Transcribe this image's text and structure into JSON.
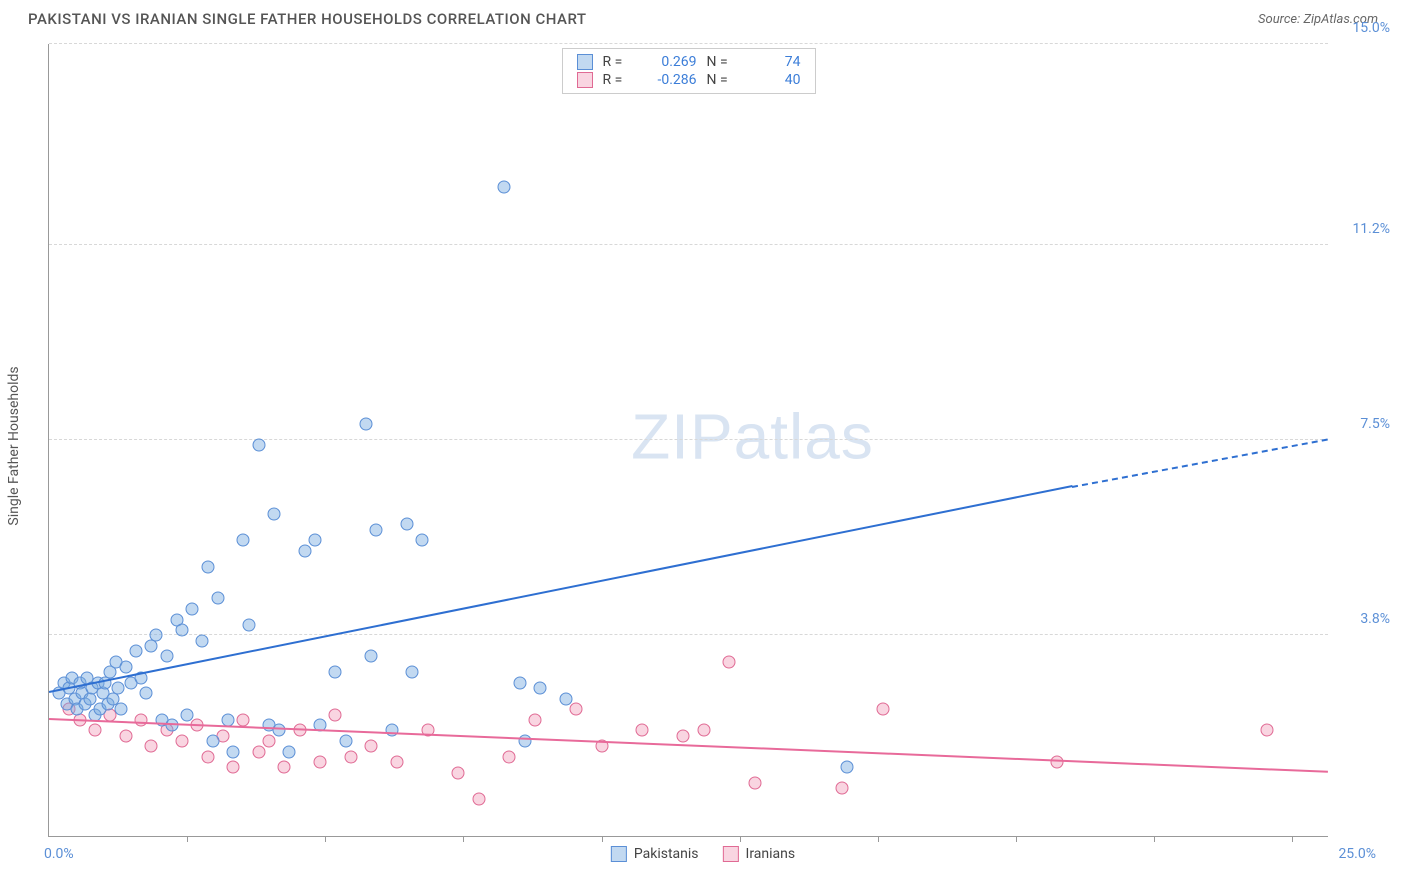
{
  "title": "PAKISTANI VS IRANIAN SINGLE FATHER HOUSEHOLDS CORRELATION CHART",
  "source_label": "Source:",
  "source_name": "ZipAtlas.com",
  "y_axis_label": "Single Father Households",
  "watermark_a": "ZIP",
  "watermark_b": "atlas",
  "chart": {
    "type": "scatter",
    "xlim": [
      0,
      25.0
    ],
    "ylim": [
      0,
      15.0
    ],
    "x_origin_label": "0.0%",
    "x_max_label": "25.0%",
    "y_ticks": [
      3.8,
      7.5,
      11.2,
      15.0
    ],
    "y_tick_labels": [
      "3.8%",
      "7.5%",
      "11.2%",
      "15.0%"
    ],
    "x_tick_positions": [
      2.7,
      5.4,
      8.1,
      10.8,
      13.5,
      16.2,
      18.9,
      21.6,
      24.3
    ],
    "background_color": "#ffffff",
    "grid_color": "#d8d8d8",
    "series": {
      "pakistanis": {
        "label": "Pakistanis",
        "point_fill": "rgba(120,170,225,0.45)",
        "point_stroke": "#5b8fd6",
        "line_color": "#2e6fd1",
        "R": "0.269",
        "N": "74",
        "trend": {
          "x1": 0.0,
          "y1": 2.7,
          "x2": 20.0,
          "y2": 6.6,
          "x2_dash": 25.0,
          "y2_dash": 7.5
        },
        "points": [
          [
            0.2,
            2.7
          ],
          [
            0.3,
            2.9
          ],
          [
            0.35,
            2.5
          ],
          [
            0.4,
            2.8
          ],
          [
            0.45,
            3.0
          ],
          [
            0.5,
            2.6
          ],
          [
            0.55,
            2.4
          ],
          [
            0.6,
            2.9
          ],
          [
            0.65,
            2.7
          ],
          [
            0.7,
            2.5
          ],
          [
            0.75,
            3.0
          ],
          [
            0.8,
            2.6
          ],
          [
            0.85,
            2.8
          ],
          [
            0.9,
            2.3
          ],
          [
            0.95,
            2.9
          ],
          [
            1.0,
            2.4
          ],
          [
            1.05,
            2.7
          ],
          [
            1.1,
            2.9
          ],
          [
            1.15,
            2.5
          ],
          [
            1.2,
            3.1
          ],
          [
            1.25,
            2.6
          ],
          [
            1.3,
            3.3
          ],
          [
            1.35,
            2.8
          ],
          [
            1.4,
            2.4
          ],
          [
            1.5,
            3.2
          ],
          [
            1.6,
            2.9
          ],
          [
            1.7,
            3.5
          ],
          [
            1.8,
            3.0
          ],
          [
            1.9,
            2.7
          ],
          [
            2.0,
            3.6
          ],
          [
            2.1,
            3.8
          ],
          [
            2.2,
            2.2
          ],
          [
            2.3,
            3.4
          ],
          [
            2.4,
            2.1
          ],
          [
            2.5,
            4.1
          ],
          [
            2.6,
            3.9
          ],
          [
            2.7,
            2.3
          ],
          [
            2.8,
            4.3
          ],
          [
            3.0,
            3.7
          ],
          [
            3.1,
            5.1
          ],
          [
            3.2,
            1.8
          ],
          [
            3.3,
            4.5
          ],
          [
            3.5,
            2.2
          ],
          [
            3.6,
            1.6
          ],
          [
            3.8,
            5.6
          ],
          [
            3.9,
            4.0
          ],
          [
            4.1,
            7.4
          ],
          [
            4.3,
            2.1
          ],
          [
            4.4,
            6.1
          ],
          [
            4.5,
            2.0
          ],
          [
            4.7,
            1.6
          ],
          [
            5.0,
            5.4
          ],
          [
            5.2,
            5.6
          ],
          [
            5.3,
            2.1
          ],
          [
            5.6,
            3.1
          ],
          [
            5.8,
            1.8
          ],
          [
            6.2,
            7.8
          ],
          [
            6.3,
            3.4
          ],
          [
            6.4,
            5.8
          ],
          [
            6.7,
            2.0
          ],
          [
            7.0,
            5.9
          ],
          [
            7.1,
            3.1
          ],
          [
            7.3,
            5.6
          ],
          [
            8.9,
            12.3
          ],
          [
            9.2,
            2.9
          ],
          [
            9.3,
            1.8
          ],
          [
            9.6,
            2.8
          ],
          [
            10.1,
            2.6
          ],
          [
            15.6,
            1.3
          ]
        ]
      },
      "iranians": {
        "label": "Iranians",
        "point_fill": "rgba(240,150,180,0.40)",
        "point_stroke": "#e06a94",
        "line_color": "#e86a9a",
        "R": "-0.286",
        "N": "40",
        "trend": {
          "x1": 0.0,
          "y1": 2.2,
          "x2": 25.0,
          "y2": 1.2
        },
        "points": [
          [
            0.4,
            2.4
          ],
          [
            0.6,
            2.2
          ],
          [
            0.9,
            2.0
          ],
          [
            1.2,
            2.3
          ],
          [
            1.5,
            1.9
          ],
          [
            1.8,
            2.2
          ],
          [
            2.0,
            1.7
          ],
          [
            2.3,
            2.0
          ],
          [
            2.6,
            1.8
          ],
          [
            2.9,
            2.1
          ],
          [
            3.1,
            1.5
          ],
          [
            3.4,
            1.9
          ],
          [
            3.6,
            1.3
          ],
          [
            3.8,
            2.2
          ],
          [
            4.1,
            1.6
          ],
          [
            4.3,
            1.8
          ],
          [
            4.6,
            1.3
          ],
          [
            4.9,
            2.0
          ],
          [
            5.3,
            1.4
          ],
          [
            5.6,
            2.3
          ],
          [
            5.9,
            1.5
          ],
          [
            6.3,
            1.7
          ],
          [
            6.8,
            1.4
          ],
          [
            7.4,
            2.0
          ],
          [
            8.0,
            1.2
          ],
          [
            8.4,
            0.7
          ],
          [
            9.0,
            1.5
          ],
          [
            9.5,
            2.2
          ],
          [
            10.3,
            2.4
          ],
          [
            10.8,
            1.7
          ],
          [
            11.6,
            2.0
          ],
          [
            12.4,
            1.9
          ],
          [
            12.8,
            2.0
          ],
          [
            13.3,
            3.3
          ],
          [
            13.8,
            1.0
          ],
          [
            15.5,
            0.9
          ],
          [
            16.3,
            2.4
          ],
          [
            19.7,
            1.4
          ],
          [
            23.8,
            2.0
          ]
        ]
      }
    }
  }
}
